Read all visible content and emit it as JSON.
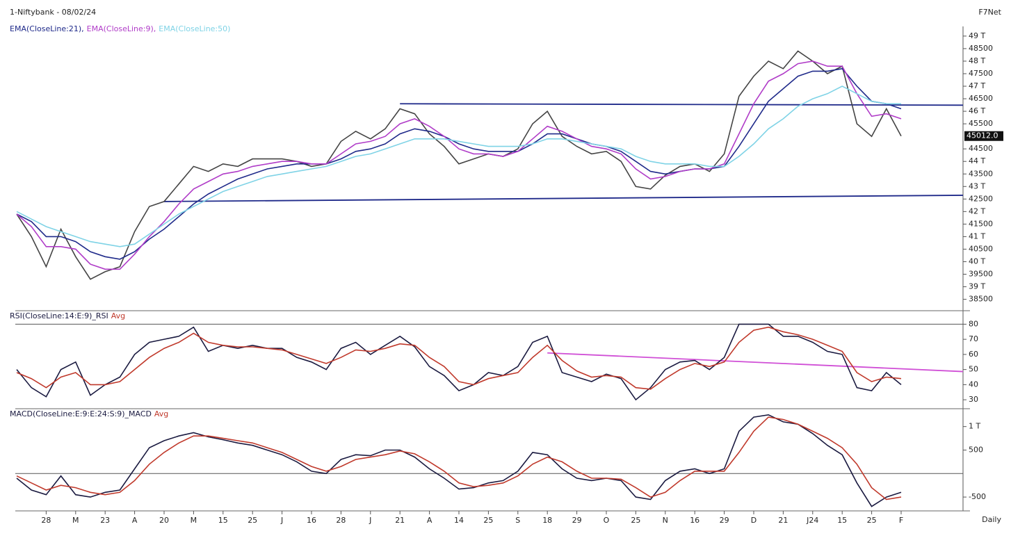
{
  "chart_data": [
    {
      "type": "line",
      "title": "1-Niftybank - 08/02/24",
      "source": "F7Net",
      "ylim": [
        38100,
        49330
      ],
      "yticks": [
        {
          "value": 49000,
          "label": "49 T"
        },
        48500,
        {
          "value": 48000,
          "label": "48 T"
        },
        47500,
        {
          "value": 47000,
          "label": "47 T"
        },
        46500,
        {
          "value": 46000,
          "label": "46 T"
        },
        45500,
        44500,
        {
          "value": 44000,
          "label": "44 T"
        },
        43500,
        {
          "value": 43000,
          "label": "43 T"
        },
        42500,
        {
          "value": 42000,
          "label": "42 T"
        },
        41500,
        {
          "value": 41000,
          "label": "41 T"
        },
        40500,
        {
          "value": 40000,
          "label": "40 T"
        },
        39500,
        {
          "value": 39000,
          "label": "39 T"
        },
        38500
      ],
      "last_label": {
        "value": 45012,
        "label": "45012.0"
      },
      "trendlines": [
        {
          "from": [
            26,
            46300
          ],
          "to": [
            60,
            46250
          ],
          "color": "#1f2a8a"
        },
        {
          "from": [
            10,
            42400
          ],
          "to": [
            60,
            42630
          ],
          "color": "#1f2a8a"
        }
      ],
      "series": [
        {
          "color": "#444444",
          "values": [
            41900,
            41000,
            39800,
            41300,
            40200,
            39300,
            39600,
            39800,
            41200,
            42200,
            42400,
            43100,
            43800,
            43600,
            43900,
            43800,
            44100,
            44100,
            44100,
            44000,
            43800,
            43900,
            44800,
            45200,
            44900,
            45300,
            46100,
            45900,
            45100,
            44600,
            43900,
            44100,
            44300,
            44200,
            44500,
            45500,
            46000,
            45000,
            44600,
            44300,
            44400,
            44000,
            43000,
            42900,
            43450,
            43800,
            43900,
            43600,
            44300,
            46600,
            47400,
            48000,
            47700,
            48400,
            48000,
            47500,
            47800,
            45500,
            45000,
            46100,
            45012
          ]
        },
        {
          "name": "EMA(CloseLine:21),",
          "color": "#1f2a8a",
          "values": [
            41900,
            41600,
            41000,
            41000,
            40800,
            40400,
            40200,
            40100,
            40400,
            40900,
            41300,
            41800,
            42300,
            42700,
            43000,
            43300,
            43500,
            43700,
            43800,
            43900,
            43900,
            43900,
            44100,
            44400,
            44500,
            44700,
            45100,
            45300,
            45200,
            45000,
            44700,
            44500,
            44400,
            44400,
            44400,
            44700,
            45100,
            45100,
            44900,
            44700,
            44600,
            44400,
            44000,
            43600,
            43500,
            43600,
            43700,
            43700,
            43800,
            44600,
            45500,
            46400,
            46900,
            47400,
            47600,
            47600,
            47700,
            47000,
            46400,
            46300,
            46100
          ]
        },
        {
          "name": "EMA(CloseLine:9),",
          "color": "#b03cc8",
          "values": [
            41900,
            41400,
            40600,
            40600,
            40500,
            39900,
            39700,
            39700,
            40300,
            41000,
            41600,
            42300,
            42900,
            43200,
            43500,
            43600,
            43800,
            43900,
            44000,
            44000,
            43900,
            43900,
            44300,
            44700,
            44800,
            45000,
            45500,
            45700,
            45400,
            45000,
            44500,
            44300,
            44300,
            44200,
            44400,
            44900,
            45400,
            45200,
            44900,
            44600,
            44500,
            44300,
            43700,
            43300,
            43400,
            43600,
            43700,
            43700,
            43900,
            45100,
            46300,
            47200,
            47500,
            47900,
            48000,
            47800,
            47800,
            46700,
            45800,
            45900,
            45700
          ]
        },
        {
          "name": "EMA(CloseLine:50)",
          "color": "#7fd3e6",
          "values": [
            42000,
            41700,
            41400,
            41200,
            41000,
            40800,
            40700,
            40600,
            40700,
            41100,
            41500,
            41900,
            42200,
            42500,
            42800,
            43000,
            43200,
            43400,
            43500,
            43600,
            43700,
            43800,
            44000,
            44200,
            44300,
            44500,
            44700,
            44900,
            44900,
            44900,
            44800,
            44700,
            44600,
            44600,
            44600,
            44700,
            44900,
            44900,
            44800,
            44700,
            44600,
            44500,
            44200,
            44000,
            43900,
            43900,
            43900,
            43800,
            43800,
            44200,
            44700,
            45300,
            45700,
            46200,
            46500,
            46700,
            47000,
            46700,
            46400,
            46300,
            46300
          ]
        }
      ]
    },
    {
      "type": "line",
      "ylim": [
        25,
        88
      ],
      "yticks": [
        80,
        70,
        60,
        50,
        40,
        30
      ],
      "reference_lines": [
        80
      ],
      "trendlines": [
        {
          "from": [
            36,
            61
          ],
          "to": [
            60,
            50.5
          ],
          "color": "#d04fd6"
        }
      ],
      "series": [
        {
          "name": "RSI(CloseLine:14:E:9)_RSI",
          "color": "#1a1a40",
          "values": [
            50,
            38,
            32,
            50,
            55,
            33,
            40,
            45,
            60,
            68,
            70,
            72,
            78,
            62,
            66,
            64,
            66,
            64,
            64,
            58,
            55,
            50,
            64,
            68,
            60,
            66,
            72,
            65,
            52,
            46,
            36,
            40,
            48,
            46,
            52,
            68,
            72,
            48,
            45,
            42,
            47,
            44,
            30,
            38,
            50,
            55,
            56,
            50,
            58,
            80,
            80,
            80,
            72,
            72,
            68,
            62,
            60,
            38,
            36,
            48,
            40
          ]
        },
        {
          "name": "Avg",
          "color": "#c0392b",
          "values": [
            48,
            44,
            38,
            45,
            48,
            40,
            40,
            42,
            50,
            58,
            64,
            68,
            74,
            68,
            66,
            65,
            65,
            64,
            63,
            60,
            57,
            54,
            58,
            63,
            62,
            64,
            67,
            66,
            58,
            52,
            42,
            40,
            44,
            46,
            48,
            58,
            66,
            56,
            49,
            45,
            46,
            45,
            38,
            37,
            44,
            50,
            54,
            52,
            55,
            68,
            76,
            78,
            75,
            73,
            70,
            66,
            62,
            48,
            42,
            45,
            44
          ]
        }
      ]
    },
    {
      "type": "line",
      "ylim": [
        -750,
        1350
      ],
      "yticks": [
        {
          "value": 1000,
          "label": "1 T"
        },
        500,
        -500
      ],
      "reference_lines": [
        0
      ],
      "period": "Daily",
      "categories": [
        null,
        null,
        "28",
        null,
        "M",
        null,
        "23",
        null,
        "A",
        null,
        "20",
        null,
        "M",
        null,
        "15",
        null,
        "25",
        null,
        "J",
        null,
        "16",
        null,
        "28",
        null,
        "J",
        null,
        "21",
        null,
        "A",
        null,
        "14",
        null,
        "25",
        null,
        "S",
        null,
        "18",
        null,
        "29",
        null,
        "O",
        null,
        "25",
        null,
        "N",
        null,
        "16",
        null,
        "29",
        null,
        "D",
        null,
        "21",
        null,
        "J24",
        null,
        "15",
        null,
        "25",
        null,
        "F"
      ],
      "series": [
        {
          "name": "MACD(CloseLine:E:9:E:24:S:9)_MACD",
          "color": "#1a1a40",
          "values": [
            -100,
            -350,
            -450,
            -50,
            -450,
            -500,
            -400,
            -350,
            100,
            550,
            700,
            800,
            870,
            780,
            720,
            650,
            600,
            500,
            400,
            250,
            50,
            0,
            300,
            400,
            380,
            500,
            500,
            350,
            100,
            -100,
            -330,
            -300,
            -200,
            -150,
            50,
            450,
            400,
            100,
            -100,
            -150,
            -100,
            -150,
            -500,
            -550,
            -150,
            50,
            100,
            0,
            100,
            900,
            1200,
            1250,
            1100,
            1050,
            850,
            600,
            400,
            -200,
            -700,
            -500,
            -400
          ]
        },
        {
          "name": "Avg",
          "color": "#c0392b",
          "values": [
            -50,
            -200,
            -350,
            -250,
            -300,
            -400,
            -450,
            -400,
            -150,
            200,
            450,
            650,
            800,
            800,
            750,
            700,
            650,
            550,
            450,
            300,
            150,
            50,
            150,
            300,
            350,
            400,
            480,
            420,
            250,
            50,
            -200,
            -280,
            -250,
            -200,
            -50,
            200,
            350,
            250,
            50,
            -100,
            -100,
            -120,
            -300,
            -500,
            -400,
            -150,
            50,
            50,
            50,
            450,
            900,
            1200,
            1150,
            1050,
            900,
            750,
            550,
            200,
            -300,
            -550,
            -500
          ]
        }
      ]
    }
  ]
}
